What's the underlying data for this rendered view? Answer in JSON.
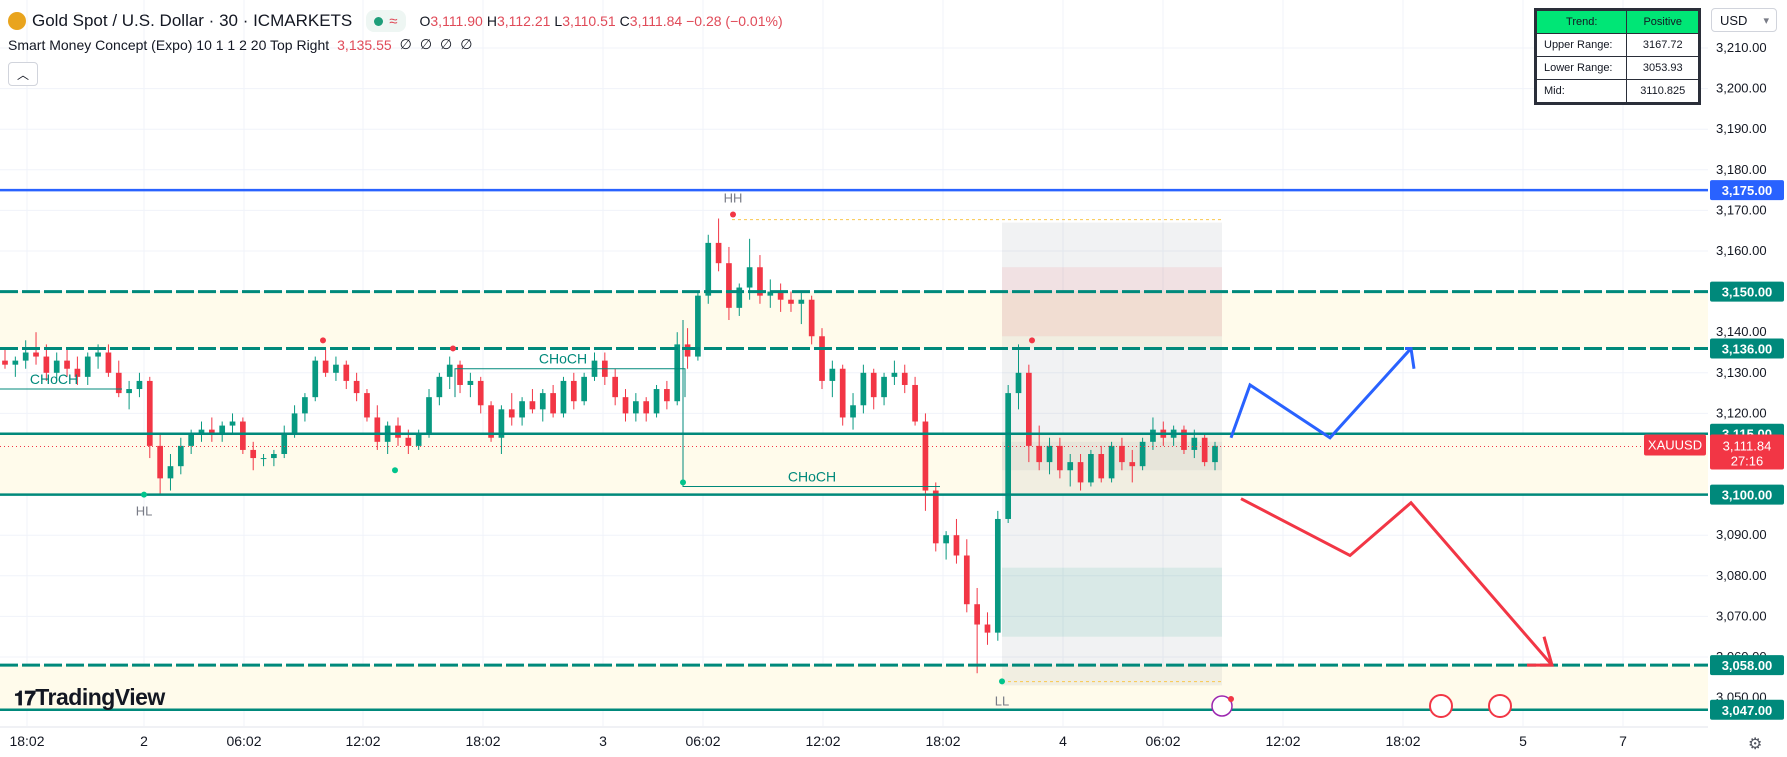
{
  "header": {
    "title": "Gold Spot / U.S. Dollar · 30 · ICMARKETS",
    "ohlc": {
      "o": "3,111.90",
      "h": "3,112.21",
      "l": "3,110.51",
      "c": "3,111.84",
      "change": "−0.28 (−0.01%)"
    }
  },
  "indicator": {
    "name": "Smart Money Concept (Expo) 10 1 1 2 20 Top Right",
    "value": "3,135.55",
    "nulls": [
      "∅",
      "∅",
      "∅",
      "∅"
    ]
  },
  "trend_table": {
    "rows": [
      [
        "Trend:",
        "Positive"
      ],
      [
        "Upper Range:",
        "3167.72"
      ],
      [
        "Lower Range:",
        "3053.93"
      ],
      [
        "Mid:",
        "3110.825"
      ]
    ]
  },
  "currency": "USD",
  "brand": "TradingView",
  "colors": {
    "up": "#089981",
    "down": "#f23645",
    "level": "#00897b",
    "blue": "#2962ff",
    "zone": "#fffbeb",
    "proj_up": "#2962ff",
    "proj_down": "#f23645"
  },
  "chart_data": {
    "type": "candlestick",
    "ylim": [
      3045,
      3215
    ],
    "price_axis": [
      "3,210.00",
      "3,200.00",
      "3,190.00",
      "3,180.00",
      "3,170.00",
      "3,160.00",
      "3,150.00",
      "3,140.00",
      "3,130.00",
      "3,120.00",
      "3,110.00",
      "3,100.00",
      "3,090.00",
      "3,080.00",
      "3,070.00",
      "3,060.00",
      "3,050.00"
    ],
    "time_axis": [
      "18:02",
      "2",
      "06:02",
      "12:02",
      "18:02",
      "3",
      "06:02",
      "12:02",
      "18:02",
      "4",
      "06:02",
      "12:02",
      "18:02",
      "5",
      "7"
    ],
    "levels": [
      {
        "price": 3175.0,
        "label": "3,175.00",
        "style": "solid",
        "color": "#2962ff"
      },
      {
        "price": 3150.0,
        "label": "3,150.00",
        "style": "dashed",
        "color": "#00897b"
      },
      {
        "price": 3136.0,
        "label": "3,136.00",
        "style": "dashed",
        "color": "#00897b"
      },
      {
        "price": 3115.0,
        "label": "3,115.00",
        "style": "solid",
        "color": "#00897b"
      },
      {
        "price": 3100.0,
        "label": "3,100.00",
        "style": "solid",
        "color": "#00897b"
      },
      {
        "price": 3058.0,
        "label": "3,058.00",
        "style": "dashed",
        "color": "#00897b"
      },
      {
        "price": 3047.0,
        "label": "3,047.00",
        "style": "solid",
        "color": "#00897b"
      }
    ],
    "current": {
      "symbol": "XAUUSD",
      "price": 3111.84,
      "label": "3,111.84",
      "countdown": "27:16"
    },
    "annotations": [
      "HH",
      "HL",
      "LL",
      "CHoCH",
      "CHoCH",
      "CHoCH"
    ],
    "candles": [
      [
        3133,
        3136,
        3131,
        3132
      ],
      [
        3132,
        3134,
        3129,
        3133
      ],
      [
        3133,
        3138,
        3131,
        3135
      ],
      [
        3135,
        3140,
        3132,
        3134
      ],
      [
        3134,
        3137,
        3128,
        3130
      ],
      [
        3130,
        3135,
        3128,
        3133
      ],
      [
        3133,
        3136,
        3129,
        3131
      ],
      [
        3131,
        3134,
        3127,
        3129
      ],
      [
        3129,
        3135,
        3127,
        3134
      ],
      [
        3134,
        3137,
        3131,
        3135
      ],
      [
        3135,
        3137,
        3129,
        3130
      ],
      [
        3130,
        3133,
        3124,
        3125
      ],
      [
        3125,
        3128,
        3121,
        3126
      ],
      [
        3126,
        3130,
        3124,
        3128
      ],
      [
        3128,
        3129,
        3109,
        3112
      ],
      [
        3112,
        3115,
        3100,
        3104
      ],
      [
        3104,
        3110,
        3101,
        3107
      ],
      [
        3107,
        3114,
        3105,
        3112
      ],
      [
        3112,
        3116,
        3110,
        3115
      ],
      [
        3115,
        3118,
        3113,
        3116
      ],
      [
        3116,
        3119,
        3113,
        3115
      ],
      [
        3115,
        3118,
        3113,
        3117
      ],
      [
        3117,
        3120,
        3115,
        3118
      ],
      [
        3118,
        3119,
        3110,
        3111
      ],
      [
        3111,
        3113,
        3106,
        3109
      ],
      [
        3109,
        3110,
        3107,
        3109
      ],
      [
        3109,
        3111,
        3107,
        3110
      ],
      [
        3110,
        3117,
        3109,
        3115
      ],
      [
        3115,
        3122,
        3114,
        3120
      ],
      [
        3120,
        3125,
        3118,
        3124
      ],
      [
        3124,
        3134,
        3123,
        3133
      ],
      [
        3133,
        3136,
        3129,
        3130
      ],
      [
        3130,
        3134,
        3128,
        3132
      ],
      [
        3132,
        3133,
        3126,
        3128
      ],
      [
        3128,
        3130,
        3123,
        3125
      ],
      [
        3125,
        3126,
        3118,
        3119
      ],
      [
        3119,
        3122,
        3111,
        3113
      ],
      [
        3113,
        3118,
        3110,
        3117
      ],
      [
        3117,
        3119,
        3112,
        3114
      ],
      [
        3114,
        3116,
        3110,
        3112
      ],
      [
        3112,
        3116,
        3111,
        3115
      ],
      [
        3115,
        3126,
        3114,
        3124
      ],
      [
        3124,
        3130,
        3122,
        3129
      ],
      [
        3129,
        3134,
        3126,
        3132
      ],
      [
        3132,
        3133,
        3125,
        3127
      ],
      [
        3127,
        3130,
        3124,
        3128
      ],
      [
        3128,
        3129,
        3120,
        3122
      ],
      [
        3122,
        3123,
        3113,
        3114
      ],
      [
        3114,
        3122,
        3110,
        3121
      ],
      [
        3121,
        3125,
        3117,
        3119
      ],
      [
        3119,
        3124,
        3117,
        3123
      ],
      [
        3123,
        3126,
        3120,
        3121
      ],
      [
        3121,
        3126,
        3118,
        3125
      ],
      [
        3125,
        3127,
        3119,
        3120
      ],
      [
        3120,
        3129,
        3119,
        3128
      ],
      [
        3128,
        3130,
        3121,
        3123
      ],
      [
        3123,
        3130,
        3122,
        3129
      ],
      [
        3129,
        3135,
        3128,
        3133
      ],
      [
        3133,
        3135,
        3127,
        3129
      ],
      [
        3129,
        3131,
        3122,
        3124
      ],
      [
        3124,
        3126,
        3118,
        3120
      ],
      [
        3120,
        3125,
        3118,
        3123
      ],
      [
        3123,
        3124,
        3118,
        3120
      ],
      [
        3120,
        3127,
        3119,
        3126
      ],
      [
        3126,
        3128,
        3121,
        3123
      ],
      [
        3123,
        3140,
        3122,
        3137
      ],
      [
        3137,
        3141,
        3131,
        3134
      ],
      [
        3134,
        3150,
        3133,
        3149
      ],
      [
        3149,
        3164,
        3147,
        3162
      ],
      [
        3162,
        3168,
        3155,
        3157
      ],
      [
        3157,
        3161,
        3143,
        3146
      ],
      [
        3146,
        3152,
        3144,
        3151
      ],
      [
        3151,
        3163,
        3148,
        3156
      ],
      [
        3156,
        3159,
        3147,
        3149
      ],
      [
        3149,
        3153,
        3146,
        3150
      ],
      [
        3150,
        3152,
        3145,
        3148
      ],
      [
        3148,
        3150,
        3145,
        3147
      ],
      [
        3147,
        3150,
        3142,
        3148
      ],
      [
        3148,
        3149,
        3137,
        3139
      ],
      [
        3139,
        3141,
        3126,
        3128
      ],
      [
        3128,
        3133,
        3124,
        3131
      ],
      [
        3131,
        3132,
        3117,
        3119
      ],
      [
        3119,
        3125,
        3116,
        3122
      ],
      [
        3122,
        3132,
        3120,
        3130
      ],
      [
        3130,
        3131,
        3121,
        3124
      ],
      [
        3124,
        3130,
        3122,
        3129
      ],
      [
        3129,
        3133,
        3127,
        3130
      ],
      [
        3130,
        3132,
        3125,
        3127
      ],
      [
        3127,
        3129,
        3117,
        3118
      ],
      [
        3118,
        3120,
        3096,
        3101
      ],
      [
        3101,
        3103,
        3086,
        3088
      ],
      [
        3088,
        3091,
        3084,
        3090
      ],
      [
        3090,
        3094,
        3083,
        3085
      ],
      [
        3085,
        3089,
        3071,
        3073
      ],
      [
        3073,
        3077,
        3056,
        3068
      ],
      [
        3068,
        3071,
        3063,
        3066
      ],
      [
        3066,
        3096,
        3064,
        3094
      ],
      [
        3094,
        3127,
        3093,
        3125
      ],
      [
        3125,
        3137,
        3121,
        3130
      ],
      [
        3130,
        3132,
        3108,
        3112
      ],
      [
        3112,
        3117,
        3106,
        3108
      ],
      [
        3108,
        3114,
        3105,
        3112
      ],
      [
        3112,
        3114,
        3104,
        3106
      ],
      [
        3106,
        3110,
        3102,
        3108
      ],
      [
        3108,
        3110,
        3101,
        3103
      ],
      [
        3103,
        3111,
        3102,
        3110
      ],
      [
        3110,
        3112,
        3103,
        3104
      ],
      [
        3104,
        3113,
        3103,
        3112
      ],
      [
        3112,
        3114,
        3106,
        3108
      ],
      [
        3108,
        3111,
        3103,
        3107
      ],
      [
        3107,
        3114,
        3106,
        3113
      ],
      [
        3113,
        3119,
        3111,
        3116
      ],
      [
        3116,
        3118,
        3112,
        3114
      ],
      [
        3114,
        3117,
        3112,
        3116
      ],
      [
        3116,
        3117,
        3110,
        3111
      ],
      [
        3111,
        3116,
        3109,
        3114
      ],
      [
        3114,
        3115,
        3107,
        3108
      ],
      [
        3108,
        3113,
        3106,
        3112
      ]
    ]
  }
}
